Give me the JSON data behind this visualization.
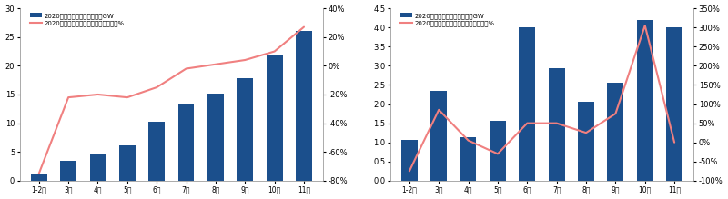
{
  "left": {
    "categories": [
      "1-2月",
      "3月",
      "4月",
      "5月",
      "6月",
      "7月",
      "8月",
      "9月",
      "10月",
      "11月"
    ],
    "bar_values": [
      1.1,
      3.5,
      4.6,
      6.2,
      10.2,
      13.2,
      15.1,
      17.8,
      22.0,
      26.0
    ],
    "line_values": [
      -0.75,
      -0.22,
      -0.2,
      -0.22,
      -0.15,
      -0.02,
      0.01,
      0.04,
      0.1,
      0.27
    ],
    "bar_color": "#1b4f8c",
    "line_color": "#f08080",
    "ylim_left": [
      0,
      30
    ],
    "ylim_right": [
      -0.8,
      0.4
    ],
    "yticks_left": [
      0,
      5,
      10,
      15,
      20,
      25,
      30
    ],
    "yticks_right": [
      -0.8,
      -0.6,
      -0.4,
      -0.2,
      0.0,
      0.2,
      0.4
    ],
    "ytick_labels_right": [
      "-80%",
      "-60%",
      "-40%",
      "-20%",
      "0%",
      "20%",
      "40%"
    ],
    "legend1": "2020年光伏新增累计装机量，GW",
    "legend2": "2020年光伏新增累计装机量同比增速，%"
  },
  "right": {
    "categories": [
      "1-2月",
      "3月",
      "4月",
      "5月",
      "6月",
      "7月",
      "8月",
      "9月",
      "10月",
      "11月"
    ],
    "bar_values": [
      1.07,
      2.35,
      1.13,
      1.57,
      4.0,
      2.93,
      2.07,
      2.55,
      4.2,
      4.0
    ],
    "line_values": [
      -0.75,
      0.85,
      0.05,
      -0.3,
      0.5,
      0.5,
      0.25,
      0.75,
      3.05,
      0.0
    ],
    "bar_color": "#1b4f8c",
    "line_color": "#f08080",
    "ylim_left": [
      0,
      4.5
    ],
    "ylim_right": [
      -1.0,
      3.5
    ],
    "yticks_left": [
      0,
      0.5,
      1.0,
      1.5,
      2.0,
      2.5,
      3.0,
      3.5,
      4.0,
      4.5
    ],
    "ytick_labels_right": [
      "-100%",
      "-50%",
      "0%",
      "50%",
      "100%",
      "150%",
      "200%",
      "250%",
      "300%",
      "350%"
    ],
    "yticks_right_vals": [
      -1.0,
      -0.5,
      0.0,
      0.5,
      1.0,
      1.5,
      2.0,
      2.5,
      3.0,
      3.5
    ],
    "legend1": "2020年光伏每月新增装机量，GW",
    "legend2": "2020年光伏每月新增装机量同比增速，%"
  },
  "bg_color": "#ffffff",
  "bar_width": 0.55
}
